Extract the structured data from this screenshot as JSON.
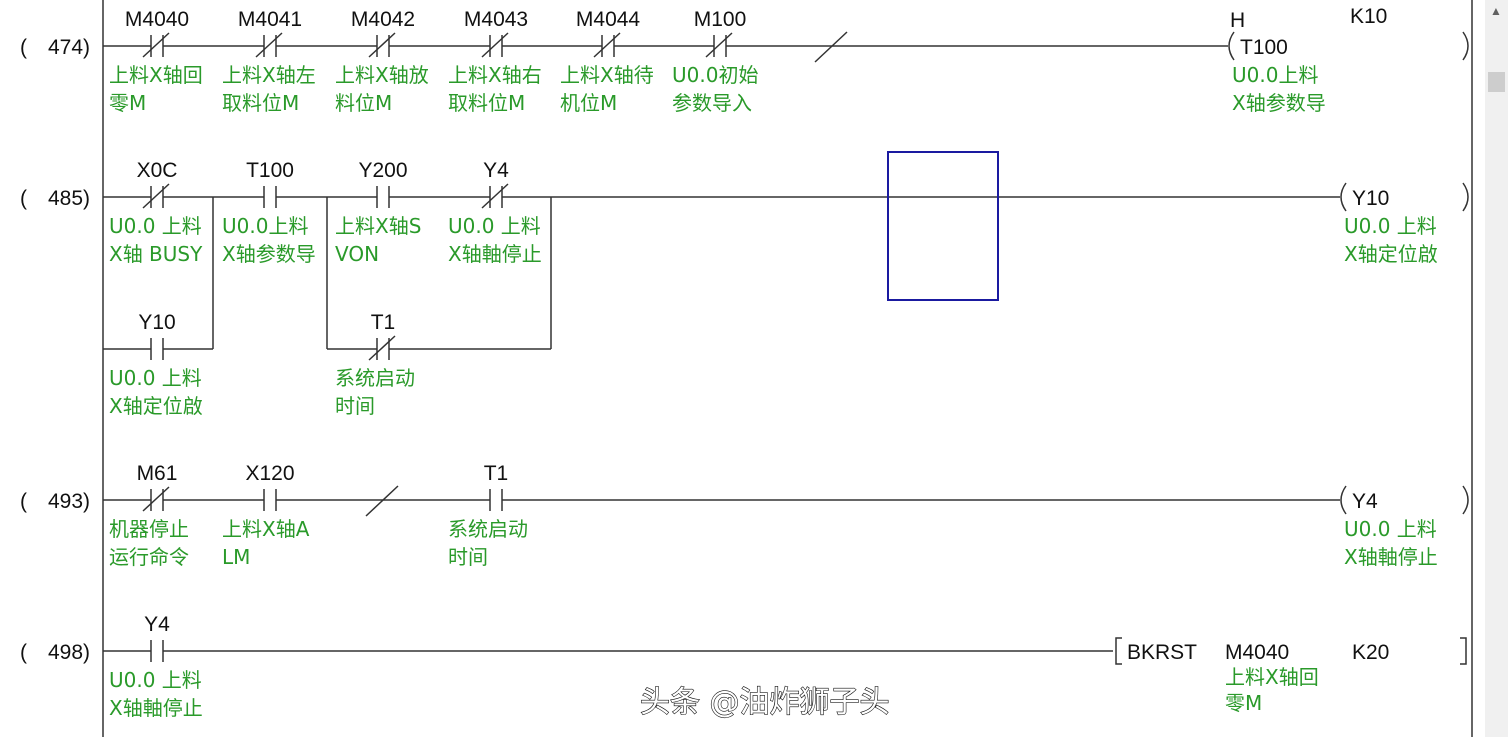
{
  "rungs": [
    {
      "step": "474",
      "contacts": [
        {
          "device": "M4040",
          "type": "NC",
          "comment": [
            "上料X轴回",
            "零M"
          ]
        },
        {
          "device": "M4041",
          "type": "NC",
          "comment": [
            "上料X轴左",
            "取料位M"
          ]
        },
        {
          "device": "M4042",
          "type": "NC",
          "comment": [
            "上料X轴放",
            "料位M"
          ]
        },
        {
          "device": "M4043",
          "type": "NC",
          "comment": [
            "上料X轴右",
            "取料位M"
          ]
        },
        {
          "device": "M4044",
          "type": "NC",
          "comment": [
            "上料X轴待",
            "机位M"
          ]
        },
        {
          "device": "M100",
          "type": "NC",
          "comment": [
            "U0.0初始",
            "参数导入"
          ]
        }
      ],
      "output": {
        "kind": "coil",
        "device": "T100",
        "prefix": "H",
        "setting": "K10",
        "comment": [
          "U0.0上料",
          "X轴参数导"
        ]
      }
    },
    {
      "step": "485",
      "contacts": [
        {
          "device": "X0C",
          "type": "NC",
          "comment": [
            "U0.0 上料",
            "X轴 BUSY"
          ]
        },
        {
          "device": "T100",
          "type": "NO",
          "comment": [
            "U0.0上料",
            "X轴参数导"
          ]
        },
        {
          "device": "Y200",
          "type": "NO",
          "comment": [
            "上料X轴S",
            "VON"
          ]
        },
        {
          "device": "Y4",
          "type": "NC",
          "comment": [
            "U0.0 上料",
            "X轴軸停止"
          ]
        }
      ],
      "branches": [
        {
          "device": "Y10",
          "type": "NO",
          "comment": [
            "U0.0 上料",
            "X轴定位啟"
          ]
        },
        {
          "device": "T1",
          "type": "NC",
          "comment": [
            "系统启动",
            "时间"
          ]
        }
      ],
      "output": {
        "kind": "coil",
        "device": "Y10",
        "comment": [
          "U0.0 上料",
          "X轴定位啟"
        ]
      }
    },
    {
      "step": "493",
      "contacts": [
        {
          "device": "M61",
          "type": "NC",
          "comment": [
            "机器停止",
            "运行命令"
          ]
        },
        {
          "device": "X120",
          "type": "NO",
          "comment": [
            "上料X轴A",
            "LM"
          ]
        },
        {
          "device": "T1",
          "type": "NO",
          "comment": [
            "系统启动",
            "时间"
          ]
        }
      ],
      "output": {
        "kind": "coil",
        "device": "Y4",
        "comment": [
          "U0.0 上料",
          "X轴軸停止"
        ]
      }
    },
    {
      "step": "498",
      "contacts": [
        {
          "device": "Y4",
          "type": "NO",
          "comment": [
            "U0.0 上料",
            "X轴軸停止"
          ]
        }
      ],
      "output": {
        "kind": "instruction",
        "op": "BKRST",
        "operands": [
          "M4040",
          "K20"
        ],
        "comment": [
          "上料X轴回",
          "零M"
        ]
      }
    }
  ],
  "watermark": "头条 @油炸狮子头",
  "colors": {
    "comment": "#2a9a2a",
    "cursor": "#1a1aa0",
    "wire": "#333333"
  }
}
